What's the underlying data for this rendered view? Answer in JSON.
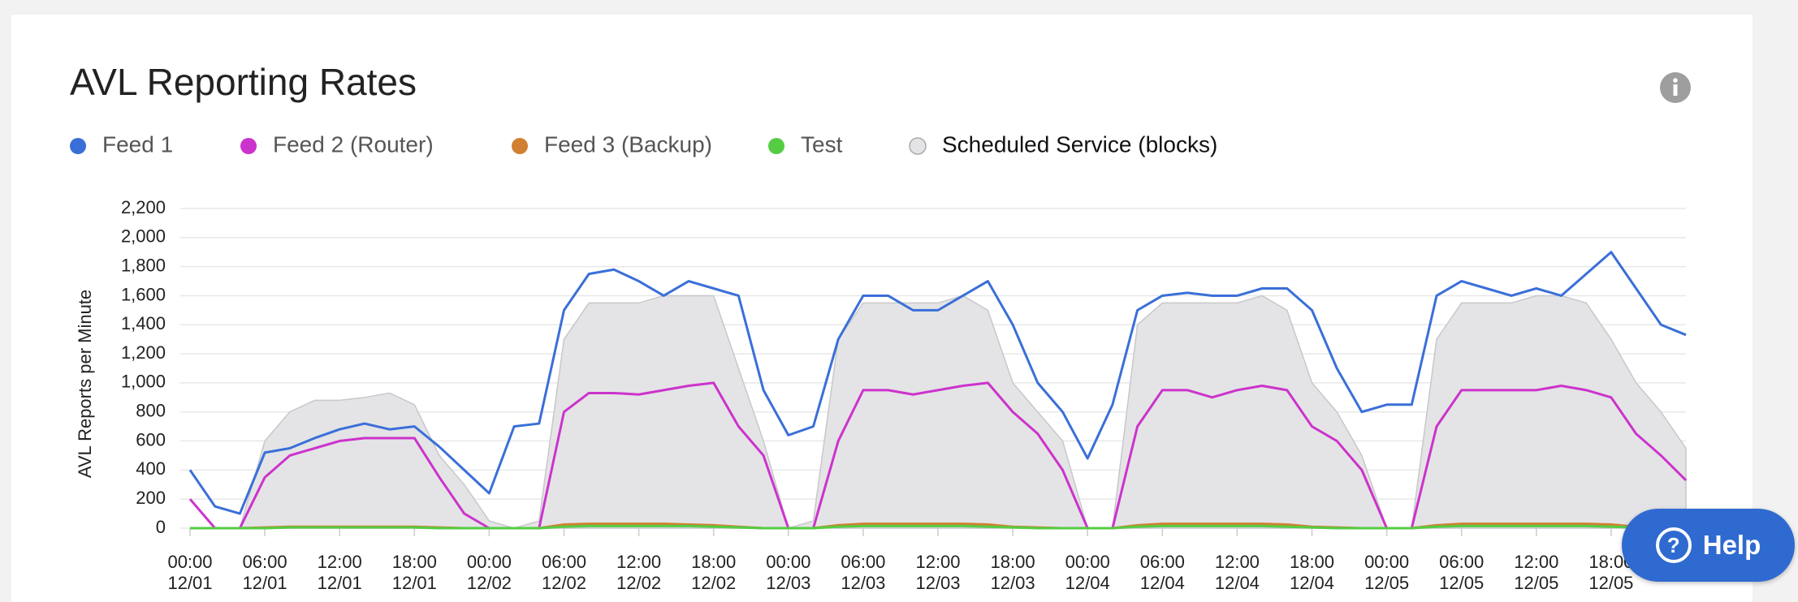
{
  "chart_data": {
    "type": "line",
    "title": "AVL Reporting Rates",
    "y_axis_label": "AVL Reports per Minute",
    "x": [
      "12/01 00:00",
      "12/01 02:00",
      "12/01 04:00",
      "12/01 06:00",
      "12/01 08:00",
      "12/01 10:00",
      "12/01 12:00",
      "12/01 14:00",
      "12/01 16:00",
      "12/01 18:00",
      "12/01 20:00",
      "12/01 22:00",
      "12/02 00:00",
      "12/02 02:00",
      "12/02 04:00",
      "12/02 06:00",
      "12/02 08:00",
      "12/02 10:00",
      "12/02 12:00",
      "12/02 14:00",
      "12/02 16:00",
      "12/02 18:00",
      "12/02 20:00",
      "12/02 22:00",
      "12/03 00:00",
      "12/03 02:00",
      "12/03 04:00",
      "12/03 06:00",
      "12/03 08:00",
      "12/03 10:00",
      "12/03 12:00",
      "12/03 14:00",
      "12/03 16:00",
      "12/03 18:00",
      "12/03 20:00",
      "12/03 22:00",
      "12/04 00:00",
      "12/04 02:00",
      "12/04 04:00",
      "12/04 06:00",
      "12/04 08:00",
      "12/04 10:00",
      "12/04 12:00",
      "12/04 14:00",
      "12/04 16:00",
      "12/04 18:00",
      "12/04 20:00",
      "12/04 22:00",
      "12/05 00:00",
      "12/05 02:00",
      "12/05 04:00",
      "12/05 06:00",
      "12/05 08:00",
      "12/05 10:00",
      "12/05 12:00",
      "12/05 14:00",
      "12/05 16:00",
      "12/05 18:00",
      "12/05 20:00",
      "12/05 22:00",
      "12/06 00:00"
    ],
    "series": [
      {
        "name": "Scheduled Service (blocks)",
        "kind": "area",
        "color": "#e4e4e6",
        "values": [
          0,
          0,
          0,
          600,
          800,
          880,
          880,
          900,
          930,
          850,
          500,
          300,
          50,
          0,
          50,
          1300,
          1550,
          1550,
          1550,
          1600,
          1600,
          1600,
          1100,
          600,
          0,
          50,
          1300,
          1550,
          1550,
          1550,
          1550,
          1600,
          1500,
          1000,
          800,
          600,
          0,
          0,
          1400,
          1550,
          1550,
          1550,
          1550,
          1600,
          1500,
          1000,
          800,
          500,
          0,
          0,
          1300,
          1550,
          1550,
          1550,
          1600,
          1600,
          1550,
          1300,
          1000,
          800,
          550
        ]
      },
      {
        "name": "Feed 1",
        "color": "#3a6fd8",
        "values": [
          400,
          150,
          100,
          520,
          550,
          620,
          680,
          720,
          680,
          700,
          560,
          400,
          240,
          700,
          720,
          1500,
          1750,
          1780,
          1700,
          1600,
          1700,
          1650,
          1600,
          950,
          640,
          700,
          1300,
          1600,
          1600,
          1500,
          1500,
          1600,
          1700,
          1400,
          1000,
          800,
          480,
          850,
          1500,
          1600,
          1620,
          1600,
          1600,
          1650,
          1650,
          1500,
          1100,
          800,
          850,
          850,
          1600,
          1700,
          1650,
          1600,
          1650,
          1600,
          1750,
          1900,
          1650,
          1400,
          1330
        ]
      },
      {
        "name": "Feed 2 (Router)",
        "color": "#cc33cc",
        "values": [
          200,
          0,
          0,
          350,
          500,
          550,
          600,
          620,
          620,
          620,
          350,
          100,
          0,
          0,
          0,
          800,
          930,
          930,
          920,
          950,
          980,
          1000,
          700,
          500,
          0,
          0,
          600,
          950,
          950,
          920,
          950,
          980,
          1000,
          800,
          650,
          400,
          0,
          0,
          700,
          950,
          950,
          900,
          950,
          980,
          950,
          700,
          600,
          400,
          0,
          0,
          700,
          950,
          950,
          950,
          950,
          980,
          950,
          900,
          650,
          500,
          330
        ]
      },
      {
        "name": "Feed 3 (Backup)",
        "color": "#d08030",
        "values": [
          0,
          0,
          0,
          5,
          10,
          10,
          10,
          10,
          10,
          10,
          5,
          0,
          0,
          0,
          0,
          25,
          30,
          30,
          30,
          30,
          25,
          20,
          10,
          0,
          0,
          0,
          20,
          30,
          30,
          30,
          30,
          30,
          25,
          10,
          5,
          0,
          0,
          0,
          20,
          30,
          30,
          30,
          30,
          30,
          25,
          10,
          5,
          0,
          0,
          0,
          20,
          30,
          30,
          30,
          30,
          30,
          30,
          25,
          10,
          5,
          0
        ]
      },
      {
        "name": "Test",
        "color": "#55cc44",
        "values": [
          0,
          0,
          0,
          0,
          5,
          5,
          5,
          5,
          5,
          5,
          0,
          0,
          0,
          0,
          0,
          10,
          15,
          15,
          15,
          15,
          15,
          10,
          5,
          0,
          0,
          0,
          10,
          15,
          15,
          15,
          15,
          15,
          10,
          5,
          0,
          0,
          0,
          0,
          10,
          15,
          15,
          15,
          15,
          15,
          10,
          5,
          0,
          0,
          0,
          0,
          10,
          15,
          15,
          15,
          15,
          15,
          15,
          10,
          5,
          0,
          0
        ]
      }
    ],
    "ylim": [
      0,
      2200
    ],
    "yticks": [
      0,
      200,
      400,
      600,
      800,
      {
        "value": 1000,
        "label": "1,000"
      },
      {
        "value": 1200,
        "label": "1,200"
      },
      {
        "value": 1400,
        "label": "1,400"
      },
      {
        "value": 1600,
        "label": "1,600"
      },
      {
        "value": 1800,
        "label": "1,800"
      },
      {
        "value": 2000,
        "label": "2,000"
      },
      {
        "value": 2200,
        "label": "2,200"
      }
    ],
    "xticks": [
      {
        "time": "00:00",
        "date": "12/01"
      },
      {
        "time": "06:00",
        "date": "12/01"
      },
      {
        "time": "12:00",
        "date": "12/01"
      },
      {
        "time": "18:00",
        "date": "12/01"
      },
      {
        "time": "00:00",
        "date": "12/02"
      },
      {
        "time": "06:00",
        "date": "12/02"
      },
      {
        "time": "12:00",
        "date": "12/02"
      },
      {
        "time": "18:00",
        "date": "12/02"
      },
      {
        "time": "00:00",
        "date": "12/03"
      },
      {
        "time": "06:00",
        "date": "12/03"
      },
      {
        "time": "12:00",
        "date": "12/03"
      },
      {
        "time": "18:00",
        "date": "12/03"
      },
      {
        "time": "00:00",
        "date": "12/04"
      },
      {
        "time": "06:00",
        "date": "12/04"
      },
      {
        "time": "12:00",
        "date": "12/04"
      },
      {
        "time": "18:00",
        "date": "12/04"
      },
      {
        "time": "00:00",
        "date": "12/05"
      },
      {
        "time": "06:00",
        "date": "12/05"
      },
      {
        "time": "12:00",
        "date": "12/05"
      },
      {
        "time": "18:00",
        "date": "12/05"
      }
    ],
    "legend_order": [
      1,
      2,
      3,
      4,
      0
    ],
    "grid": true
  },
  "help_button": "Help"
}
